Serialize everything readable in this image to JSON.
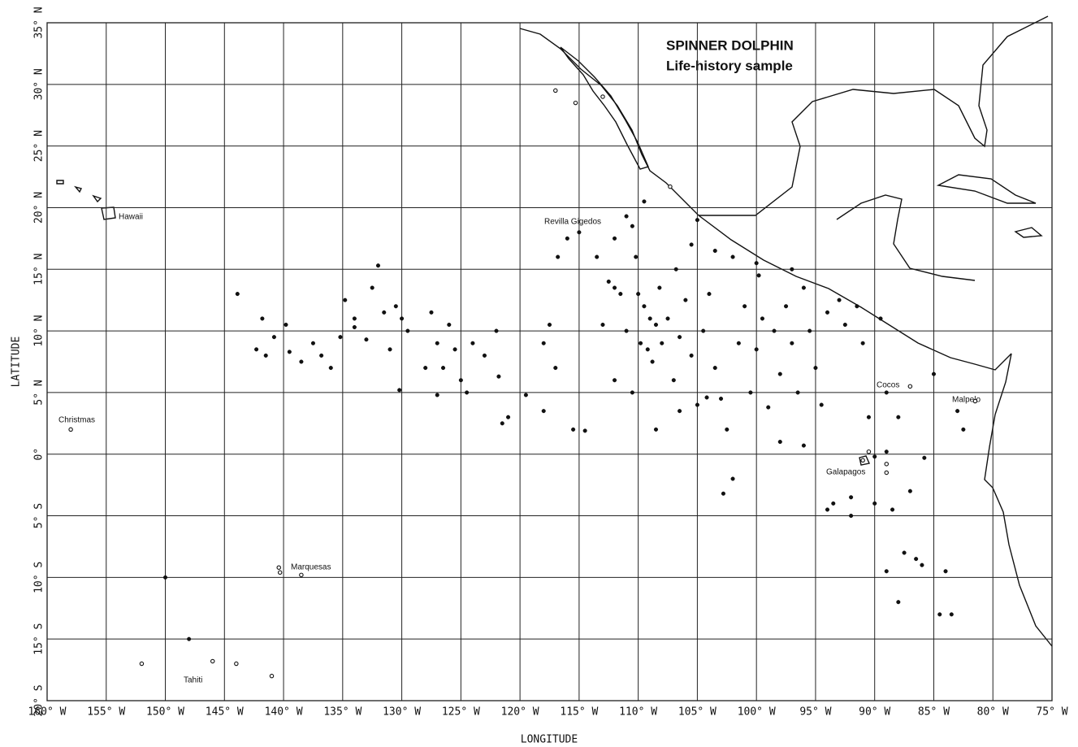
{
  "chart_data": {
    "type": "scatter",
    "title": "SPINNER DOLPHIN",
    "subtitle": "Life-history sample",
    "x_label": "LONGITUDE",
    "y_label": "LATITUDE",
    "annotations": [
      "Hawaii",
      "Revilla Gigedos",
      "Christmas",
      "Marquesas",
      "Tahiti",
      "Cocos",
      "Malpelo",
      "Galapagos"
    ],
    "xlim": [
      -160,
      -75
    ],
    "ylim": [
      -20,
      35
    ],
    "grid": true,
    "xticks": [
      {
        "value": -160,
        "label": "160° W"
      },
      {
        "value": -155,
        "label": "155° W"
      },
      {
        "value": -150,
        "label": "150° W"
      },
      {
        "value": -145,
        "label": "145° W"
      },
      {
        "value": -140,
        "label": "140° W"
      },
      {
        "value": -135,
        "label": "135° W"
      },
      {
        "value": -130,
        "label": "130° W"
      },
      {
        "value": -125,
        "label": "125° W"
      },
      {
        "value": -120,
        "label": "120° W"
      },
      {
        "value": -115,
        "label": "115° W"
      },
      {
        "value": -110,
        "label": "110° W"
      },
      {
        "value": -105,
        "label": "105° W"
      },
      {
        "value": -100,
        "label": "100° W"
      },
      {
        "value": -95,
        "label": "95° W"
      },
      {
        "value": -90,
        "label": "90° W"
      },
      {
        "value": -85,
        "label": "85° W"
      },
      {
        "value": -80,
        "label": "80° W"
      },
      {
        "value": -75,
        "label": "75° W"
      }
    ],
    "yticks": [
      {
        "value": -20,
        "label": "20° S"
      },
      {
        "value": -15,
        "label": "15° S"
      },
      {
        "value": -10,
        "label": "10° S"
      },
      {
        "value": -5,
        "label": "5° S"
      },
      {
        "value": 0,
        "label": "0°"
      },
      {
        "value": 5,
        "label": "5° N"
      },
      {
        "value": 10,
        "label": "10° N"
      },
      {
        "value": 15,
        "label": "15° N"
      },
      {
        "value": 20,
        "label": "20° N"
      },
      {
        "value": 25,
        "label": "25° N"
      },
      {
        "value": 30,
        "label": "30° N"
      },
      {
        "value": 35,
        "label": "35° N"
      }
    ],
    "series": [
      {
        "color": "#111111",
        "marker": "filled",
        "x": [
          -143.9,
          -141.8,
          -142.3,
          -141.5,
          -140.8,
          -139.8,
          -139.5,
          -138.5,
          -137.5,
          -136.8,
          -136,
          -135.2,
          -134.8,
          -134,
          -133,
          -132.5,
          -132,
          -131.5,
          -131,
          -130.5,
          -130,
          -129.5,
          -130.2,
          -128,
          -127.5,
          -127,
          -126.5,
          -126,
          -125.5,
          -125,
          -124.5,
          -124,
          -123,
          -122,
          -121.8,
          -121,
          -121.5,
          -119.5,
          -118,
          -117.5,
          -117,
          -116.8,
          -116,
          -115.5,
          -114.5,
          -115,
          -113.5,
          -112.5,
          -112,
          -111.5,
          -111,
          -110.5,
          -110.2,
          -110,
          -109.8,
          -109.5,
          -109.2,
          -109,
          -108.8,
          -108.5,
          -108.2,
          -108,
          -107.5,
          -107,
          -106.8,
          -106.5,
          -106,
          -105.5,
          -105,
          -104.5,
          -104,
          -103.5,
          -103,
          -102.8,
          -102,
          -101.5,
          -101,
          -100.5,
          -100,
          -99.8,
          -99.5,
          -99,
          -98.5,
          -98,
          -97.5,
          -97,
          -96.5,
          -96,
          -95.5,
          -95,
          -94.5,
          -94,
          -93.5,
          -93,
          -92.5,
          -92,
          -91.5,
          -91,
          -90.5,
          -90,
          -89.5,
          -89,
          -88.5,
          -88,
          -87.5,
          -87,
          -86.5,
          -86,
          -85.8,
          -85,
          -84.5,
          -83.5,
          -83,
          -82.5,
          -84,
          -88,
          -89,
          -118,
          -127,
          -134,
          -113,
          -112,
          -110.5,
          -108.5,
          -106.5,
          -104.2,
          -102.5,
          -98,
          -96,
          -94,
          -92,
          -90,
          -89,
          -87,
          -112,
          -111,
          -109.5,
          -105,
          -103.5,
          -102,
          -100,
          -97,
          -105.5,
          -150,
          -148
        ],
        "y": [
          13,
          11,
          8.5,
          8,
          9.5,
          10.5,
          8.3,
          7.5,
          9,
          8,
          7,
          9.5,
          12.5,
          10.3,
          9.3,
          13.5,
          15.3,
          11.5,
          8.5,
          12,
          11,
          10,
          5.2,
          7,
          11.5,
          9,
          7,
          10.5,
          8.5,
          6,
          5,
          9,
          8,
          10,
          6.3,
          3,
          2.5,
          4.8,
          9,
          10.5,
          7,
          16,
          17.5,
          2,
          1.9,
          18,
          16,
          14,
          17.5,
          13,
          10,
          18.5,
          16,
          13,
          9,
          12,
          8.5,
          11,
          7.5,
          10.5,
          13.5,
          9,
          11,
          6,
          15,
          9.5,
          12.5,
          8,
          4,
          10,
          13,
          7,
          4.5,
          -3.2,
          -2,
          9,
          12,
          5,
          8.5,
          14.5,
          11,
          3.8,
          10,
          6.5,
          12,
          9,
          5,
          13.5,
          10,
          7,
          4,
          11.5,
          -4,
          12.5,
          10.5,
          -3.5,
          12,
          9,
          3,
          -4,
          11,
          5,
          -4.5,
          3,
          -8,
          5.5,
          -8.5,
          -9,
          -0.3,
          6.5,
          -13,
          -13,
          3.5,
          2,
          -9.5,
          -12,
          -9.5,
          3.5,
          4.8,
          11,
          10.5,
          6,
          5,
          2,
          3.5,
          4.6,
          2,
          1,
          0.7,
          -4.5,
          -5,
          -0.2,
          0.2,
          -3,
          13.5,
          19.3,
          20.5,
          19,
          16.5,
          16,
          15.5,
          15,
          17,
          -10,
          -15
        ]
      },
      {
        "color": "#111111",
        "marker": "open",
        "x": [
          -117,
          -115.3,
          -113,
          -107.3,
          -158,
          -140.4,
          -140.3,
          -138.5,
          -152,
          -146,
          -144,
          -141,
          -91,
          -89,
          -89,
          -90.5,
          -81.5,
          -87
        ],
        "y": [
          29.5,
          28.5,
          29,
          21.7,
          2,
          -9.2,
          -9.6,
          -9.8,
          -17,
          -16.8,
          -17,
          -18,
          -0.5,
          -0.8,
          -1.5,
          0.2,
          4.3,
          5.5
        ]
      }
    ]
  }
}
